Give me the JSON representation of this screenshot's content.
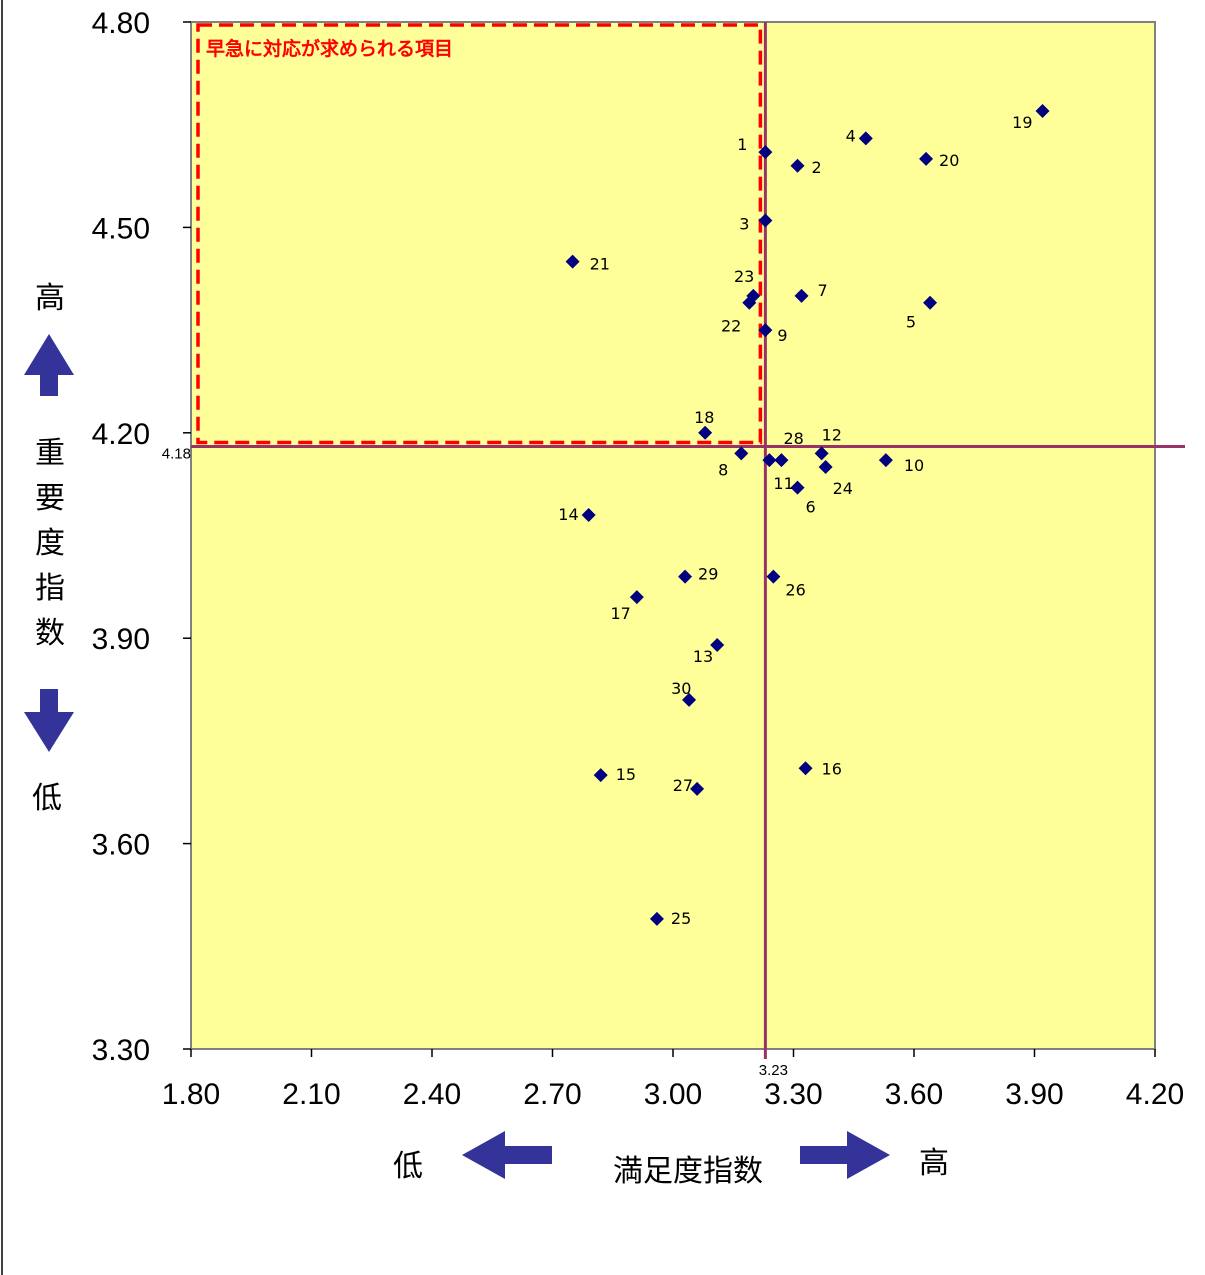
{
  "chart_data": {
    "type": "scatter",
    "title": "",
    "xlabel": "満足度指数",
    "ylabel": "重要度指数",
    "xlim": [
      1.8,
      4.2
    ],
    "ylim": [
      3.3,
      4.8
    ],
    "x_ticks": [
      "1.80",
      "2.10",
      "2.40",
      "2.70",
      "3.00",
      "3.30",
      "3.60",
      "3.90",
      "4.20"
    ],
    "y_ticks": [
      "3.30",
      "3.60",
      "3.90",
      "4.20",
      "4.50",
      "4.80"
    ],
    "x_low": "低",
    "x_high": "高",
    "y_low": "低",
    "y_high": "高",
    "x_ref": 3.23,
    "y_ref": 4.18,
    "x_ref_label": "3.23",
    "y_ref_label": "4.18",
    "highlight_label": "早急に対応が求められる項目",
    "plot_bg": "#ffff99",
    "marker_color": "#000080",
    "ref_line_color": "#993366",
    "highlight_color": "#ff0000",
    "arrow_color": "#333399",
    "points": [
      {
        "label": "1",
        "x": 3.23,
        "y": 4.61
      },
      {
        "label": "2",
        "x": 3.31,
        "y": 4.59
      },
      {
        "label": "3",
        "x": 3.23,
        "y": 4.51
      },
      {
        "label": "4",
        "x": 3.48,
        "y": 4.63
      },
      {
        "label": "5",
        "x": 3.64,
        "y": 4.39
      },
      {
        "label": "6",
        "x": 3.31,
        "y": 4.12
      },
      {
        "label": "7",
        "x": 3.32,
        "y": 4.4
      },
      {
        "label": "8",
        "x": 3.17,
        "y": 4.17
      },
      {
        "label": "9",
        "x": 3.23,
        "y": 4.35
      },
      {
        "label": "10",
        "x": 3.53,
        "y": 4.16
      },
      {
        "label": "11",
        "x": 3.24,
        "y": 4.16
      },
      {
        "label": "12",
        "x": 3.37,
        "y": 4.17
      },
      {
        "label": "13",
        "x": 3.11,
        "y": 3.89
      },
      {
        "label": "14",
        "x": 2.79,
        "y": 4.08
      },
      {
        "label": "15",
        "x": 2.82,
        "y": 3.7
      },
      {
        "label": "16",
        "x": 3.33,
        "y": 3.71
      },
      {
        "label": "17",
        "x": 2.91,
        "y": 3.96
      },
      {
        "label": "18",
        "x": 3.08,
        "y": 4.2
      },
      {
        "label": "19",
        "x": 3.92,
        "y": 4.67
      },
      {
        "label": "20",
        "x": 3.63,
        "y": 4.6
      },
      {
        "label": "21",
        "x": 2.75,
        "y": 4.45
      },
      {
        "label": "22",
        "x": 3.19,
        "y": 4.39
      },
      {
        "label": "23",
        "x": 3.2,
        "y": 4.4
      },
      {
        "label": "24",
        "x": 3.38,
        "y": 4.15
      },
      {
        "label": "25",
        "x": 2.96,
        "y": 3.49
      },
      {
        "label": "26",
        "x": 3.25,
        "y": 3.99
      },
      {
        "label": "27",
        "x": 3.06,
        "y": 3.68
      },
      {
        "label": "28",
        "x": 3.27,
        "y": 4.16
      },
      {
        "label": "29",
        "x": 3.03,
        "y": 3.99
      },
      {
        "label": "30",
        "x": 3.04,
        "y": 3.81
      }
    ]
  }
}
